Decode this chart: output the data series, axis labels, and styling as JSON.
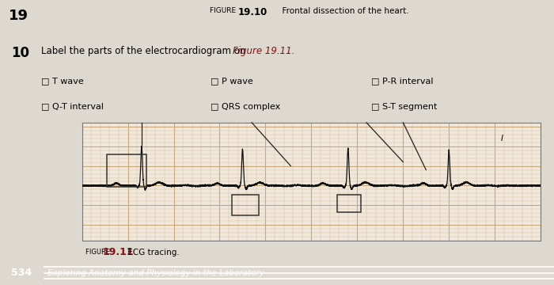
{
  "title_figure_label": "FIGURE",
  "title_num": "19.10",
  "title_text": "Frontal dissection of the heart.",
  "chapter_num": "19",
  "question_num": "10",
  "checkboxes_row1": [
    "T wave",
    "P wave",
    "P-R interval"
  ],
  "checkboxes_row2": [
    "Q-T interval",
    "QRS complex",
    "S-T segment"
  ],
  "figure_caption_label": "FIGURE",
  "figure_caption_num": "19.11",
  "figure_caption_text": "ECG tracing.",
  "footer_num": "534",
  "footer_text": "Exploring Anatomy and Physiology in the Laboratory",
  "bg_color": "#ddd8d0",
  "ecg_bg": "#f0e8dc",
  "grid_color_major": "#c8a87a",
  "grid_color_minor": "#ddc09a",
  "ecg_color": "#111111",
  "dark_red": "#8B1010",
  "footer_bg": "#8B1a0a",
  "footer_stripe": "#b03010",
  "annotation_line_color": "#222222",
  "box_color": "#333333"
}
